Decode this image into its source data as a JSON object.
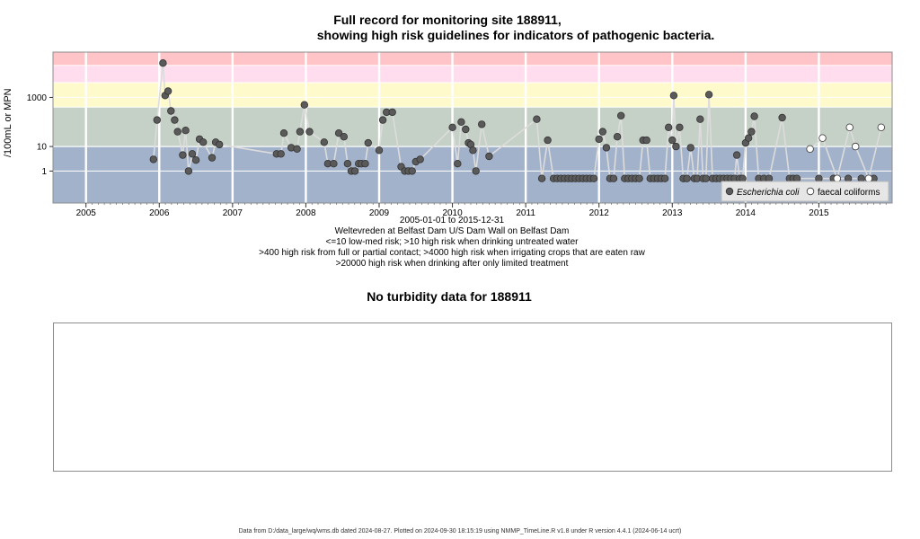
{
  "title": {
    "line1": "Full record for monitoring site 188911,",
    "line2": "showing high risk guidelines for indicators of pathogenic bacteria."
  },
  "notes": {
    "date_range": "2005-01-01 to 2015-12-31",
    "site_name": "Weltevreden at Belfast Dam U/S Dam Wall on Belfast Dam",
    "risk1": "<=10 low-med risk; >10 high risk when drinking untreated water",
    "risk2": ">400 high risk from full or partial contact; >4000 high risk when irrigating crops that are eaten raw",
    "risk3": ">20000 high risk when drinking after only limited treatment"
  },
  "turbidity": {
    "title": "No turbidity data for 188911"
  },
  "footer": "Data from D:/data_large/wq/wms.db dated 2024-08-27. Plotted on 2024-09-30 18:15:19 using NMMP_TimeLine.R v1.8 under R version 4.4.1 (2024-06-14 ucrt)",
  "colors": {
    "band_low": "#a3b2cb",
    "band_high10": "#c5d0c6",
    "band_400": "#fffacc",
    "band_4000": "#ffddee",
    "band_20000": "#ffc4c8",
    "ecoli_fill": "#5a5a5a",
    "line": "#dcdcdc"
  },
  "chart_data": {
    "type": "scatter",
    "ylabel": "/100mL or MPN",
    "yscale": "log",
    "ylim": [
      0.05,
      70000
    ],
    "xlim": [
      2004.55,
      2016.0
    ],
    "x_ticks": [
      2005,
      2006,
      2007,
      2008,
      2009,
      2010,
      2011,
      2012,
      2013,
      2014,
      2015
    ],
    "x_tick_labels": [
      "2005",
      "2006",
      "2007",
      "2008",
      "2009",
      "2010",
      "2011",
      "2012",
      "2013",
      "2014",
      "2015"
    ],
    "y_ticks": [
      1,
      10,
      1000
    ],
    "y_tick_labels": [
      "1",
      "10",
      "1000"
    ],
    "risk_bands": [
      10,
      400,
      4000,
      20000
    ],
    "legend": {
      "position": "bottom-right",
      "entries": [
        "Escherichia coli",
        "faecal coliforms"
      ]
    },
    "series": [
      {
        "name": "Escherichia coli",
        "marker": "filled",
        "points": [
          [
            2005.92,
            3
          ],
          [
            2005.97,
            120
          ],
          [
            2006.05,
            25000
          ],
          [
            2006.08,
            1200
          ],
          [
            2006.12,
            1800
          ],
          [
            2006.16,
            280
          ],
          [
            2006.21,
            120
          ],
          [
            2006.25,
            40
          ],
          [
            2006.32,
            4.5
          ],
          [
            2006.36,
            45
          ],
          [
            2006.4,
            1
          ],
          [
            2006.45,
            5
          ],
          [
            2006.5,
            2.8
          ],
          [
            2006.55,
            20
          ],
          [
            2006.6,
            15
          ],
          [
            2006.72,
            3.5
          ],
          [
            2006.77,
            15
          ],
          [
            2006.82,
            12
          ],
          [
            2007.6,
            5
          ],
          [
            2007.66,
            5
          ],
          [
            2007.7,
            35
          ],
          [
            2007.8,
            9
          ],
          [
            2007.88,
            8
          ],
          [
            2007.92,
            40
          ],
          [
            2007.98,
            500
          ],
          [
            2008.05,
            40
          ],
          [
            2008.25,
            15
          ],
          [
            2008.3,
            2
          ],
          [
            2008.38,
            2
          ],
          [
            2008.45,
            35
          ],
          [
            2008.52,
            25
          ],
          [
            2008.57,
            2
          ],
          [
            2008.62,
            1
          ],
          [
            2008.67,
            1
          ],
          [
            2008.72,
            2
          ],
          [
            2008.76,
            2
          ],
          [
            2008.81,
            2
          ],
          [
            2008.85,
            14
          ],
          [
            2009.0,
            7
          ],
          [
            2009.05,
            120
          ],
          [
            2009.1,
            250
          ],
          [
            2009.18,
            250
          ],
          [
            2009.3,
            1.5
          ],
          [
            2009.35,
            1
          ],
          [
            2009.4,
            1
          ],
          [
            2009.45,
            1
          ],
          [
            2009.5,
            2.4
          ],
          [
            2009.56,
            3
          ],
          [
            2010.0,
            60
          ],
          [
            2010.07,
            2
          ],
          [
            2010.12,
            100
          ],
          [
            2010.18,
            50
          ],
          [
            2010.22,
            14
          ],
          [
            2010.25,
            12
          ],
          [
            2010.28,
            7
          ],
          [
            2010.32,
            1
          ],
          [
            2010.4,
            80
          ],
          [
            2010.5,
            4
          ],
          [
            2011.15,
            130
          ],
          [
            2011.22,
            0.5
          ],
          [
            2011.3,
            18
          ],
          [
            2011.38,
            0.5
          ],
          [
            2011.43,
            0.5
          ],
          [
            2011.48,
            0.5
          ],
          [
            2011.53,
            0.5
          ],
          [
            2011.58,
            0.5
          ],
          [
            2011.63,
            0.5
          ],
          [
            2011.68,
            0.5
          ],
          [
            2011.73,
            0.5
          ],
          [
            2011.78,
            0.5
          ],
          [
            2011.83,
            0.5
          ],
          [
            2011.88,
            0.5
          ],
          [
            2011.93,
            0.5
          ],
          [
            2012.0,
            20
          ],
          [
            2012.05,
            40
          ],
          [
            2012.1,
            9
          ],
          [
            2012.15,
            0.5
          ],
          [
            2012.2,
            0.5
          ],
          [
            2012.25,
            25
          ],
          [
            2012.3,
            180
          ],
          [
            2012.35,
            0.5
          ],
          [
            2012.4,
            0.5
          ],
          [
            2012.45,
            0.5
          ],
          [
            2012.5,
            0.5
          ],
          [
            2012.55,
            0.5
          ],
          [
            2012.6,
            18
          ],
          [
            2012.65,
            18
          ],
          [
            2012.7,
            0.5
          ],
          [
            2012.75,
            0.5
          ],
          [
            2012.8,
            0.5
          ],
          [
            2012.85,
            0.5
          ],
          [
            2012.9,
            0.5
          ],
          [
            2012.95,
            60
          ],
          [
            2013.0,
            18
          ],
          [
            2013.02,
            1200
          ],
          [
            2013.05,
            10
          ],
          [
            2013.1,
            60
          ],
          [
            2013.15,
            0.5
          ],
          [
            2013.2,
            0.5
          ],
          [
            2013.25,
            9
          ],
          [
            2013.3,
            0.5
          ],
          [
            2013.34,
            0.5
          ],
          [
            2013.38,
            130
          ],
          [
            2013.42,
            0.5
          ],
          [
            2013.46,
            0.5
          ],
          [
            2013.5,
            1300
          ],
          [
            2013.55,
            0.5
          ],
          [
            2013.6,
            0.5
          ],
          [
            2013.65,
            0.5
          ],
          [
            2013.7,
            0.5
          ],
          [
            2013.75,
            0.5
          ],
          [
            2013.8,
            0.5
          ],
          [
            2013.85,
            0.5
          ],
          [
            2013.88,
            4.5
          ],
          [
            2013.92,
            0.5
          ],
          [
            2013.96,
            0.5
          ],
          [
            2014.0,
            14
          ],
          [
            2014.04,
            22
          ],
          [
            2014.08,
            40
          ],
          [
            2014.12,
            170
          ],
          [
            2014.18,
            0.5
          ],
          [
            2014.25,
            0.5
          ],
          [
            2014.32,
            0.5
          ],
          [
            2014.5,
            150
          ],
          [
            2014.6,
            0.5
          ],
          [
            2014.65,
            0.5
          ],
          [
            2014.7,
            0.5
          ],
          [
            2015.0,
            0.5
          ],
          [
            2015.2,
            0.5
          ],
          [
            2015.4,
            0.5
          ],
          [
            2015.58,
            0.5
          ],
          [
            2015.75,
            0.5
          ]
        ]
      },
      {
        "name": "faecal coliforms",
        "marker": "open",
        "points": [
          [
            2014.88,
            8
          ],
          [
            2015.05,
            22
          ],
          [
            2015.25,
            0.5
          ],
          [
            2015.42,
            60
          ],
          [
            2015.5,
            10
          ],
          [
            2015.68,
            0.5
          ],
          [
            2015.85,
            60
          ]
        ]
      }
    ]
  }
}
